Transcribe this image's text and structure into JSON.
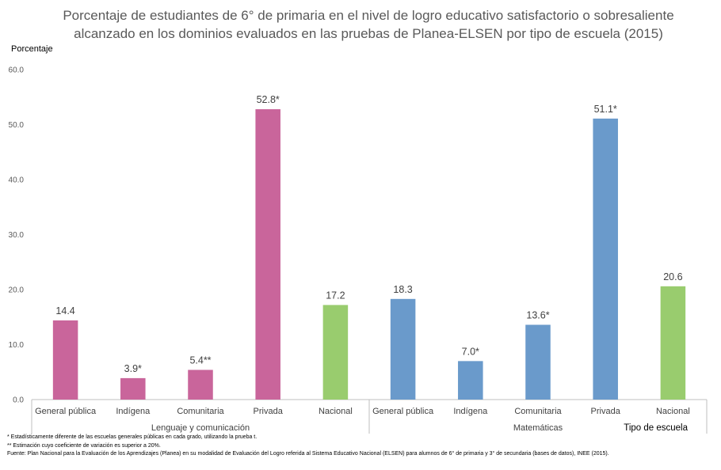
{
  "chart_data": {
    "type": "bar",
    "title": "Porcentaje de estudiantes de 6° de primaria  en el nivel de logro educativo satisfactorio o sobresaliente alcanzado en los dominios evaluados en las pruebas de Planea-ELSEN por tipo de escuela (2015)",
    "ylabel": "Porcentaje",
    "xlabel": "Tipo de escuela",
    "ylim": [
      0,
      60
    ],
    "yticks": [
      "0.0",
      "10.0",
      "20.0",
      "30.0",
      "40.0",
      "50.0",
      "60.0"
    ],
    "grid": false,
    "groups": [
      {
        "name": "Lenguaje y comunicación",
        "categories": [
          "General pública",
          "Indígena",
          "Comunitaria",
          "Privada",
          "Nacional"
        ],
        "values": [
          14.4,
          3.9,
          5.4,
          52.8,
          17.2
        ],
        "labels": [
          "14.4",
          "3.9*",
          "5.4**",
          "52.8*",
          "17.2"
        ],
        "colors": [
          "#c9659b",
          "#c9659b",
          "#c9659b",
          "#c9659b",
          "#99cc6e"
        ]
      },
      {
        "name": "Matemáticas",
        "categories": [
          "General pública",
          "Indígena",
          "Comunitaria",
          "Privada",
          "Nacional"
        ],
        "values": [
          18.3,
          7.0,
          13.6,
          51.1,
          20.6
        ],
        "labels": [
          "18.3",
          "7.0*",
          "13.6*",
          "51.1*",
          "20.6"
        ],
        "colors": [
          "#6a9acb",
          "#6a9acb",
          "#6a9acb",
          "#6a9acb",
          "#99cc6e"
        ]
      }
    ]
  },
  "notes": [
    "* Estadísticamente diferente de las escuelas generales públicas en cada grado, utilizando la prueba t.",
    "** Estimación cuyo coeficiente de variación es superior a 20%.",
    "Fuente: Plan Nacional para la Evaluación de los Aprendizajes (Planea) en su modalidad de Evaluación del Logro referida al Sistema Educativo Nacional (ELSEN) para alumnos de 6° de primaria y 3° de secundaria  (bases de datos), INEE (2015)."
  ]
}
